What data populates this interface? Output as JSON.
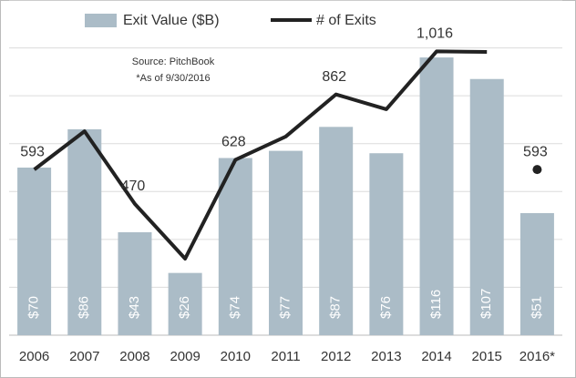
{
  "chart_data": {
    "type": "bar-line",
    "annotations": [
      "Source: PitchBook",
      "*As of 9/30/2016"
    ],
    "categories": [
      "2006",
      "2007",
      "2008",
      "2009",
      "2010",
      "2011",
      "2012",
      "2013",
      "2014",
      "2015",
      "2016*"
    ],
    "series": [
      {
        "name": "Exit Value ($B)",
        "type": "bar",
        "color": "#abbcc7",
        "values": [
          70,
          86,
          43,
          26,
          74,
          77,
          87,
          76,
          116,
          107,
          51
        ],
        "value_labels": [
          "$70",
          "$86",
          "$43",
          "$26",
          "$74",
          "$77",
          "$87",
          "$76",
          "$116",
          "$107",
          "$51"
        ]
      },
      {
        "name": "# of Exits",
        "type": "line",
        "color": "#222222",
        "axis": "y2",
        "values": [
          593,
          730,
          470,
          274,
          628,
          711,
          862,
          809,
          1016,
          1014,
          null
        ],
        "value_labels": [
          "593",
          null,
          "470",
          null,
          "628",
          null,
          "862",
          null,
          "1,016",
          null,
          null
        ]
      },
      {
        "type": "dot",
        "color": "#222222",
        "axis": "y2",
        "values": [
          null,
          null,
          null,
          null,
          null,
          null,
          null,
          null,
          null,
          null,
          593
        ],
        "value_labels": [
          null,
          null,
          null,
          null,
          null,
          null,
          null,
          null,
          null,
          null,
          "593"
        ]
      }
    ],
    "ylim": [
      0,
      140
    ],
    "yticks": [
      0,
      20,
      40,
      60,
      80,
      100,
      120,
      140
    ],
    "y2lim": [
      0,
      1200
    ],
    "grid": true
  }
}
